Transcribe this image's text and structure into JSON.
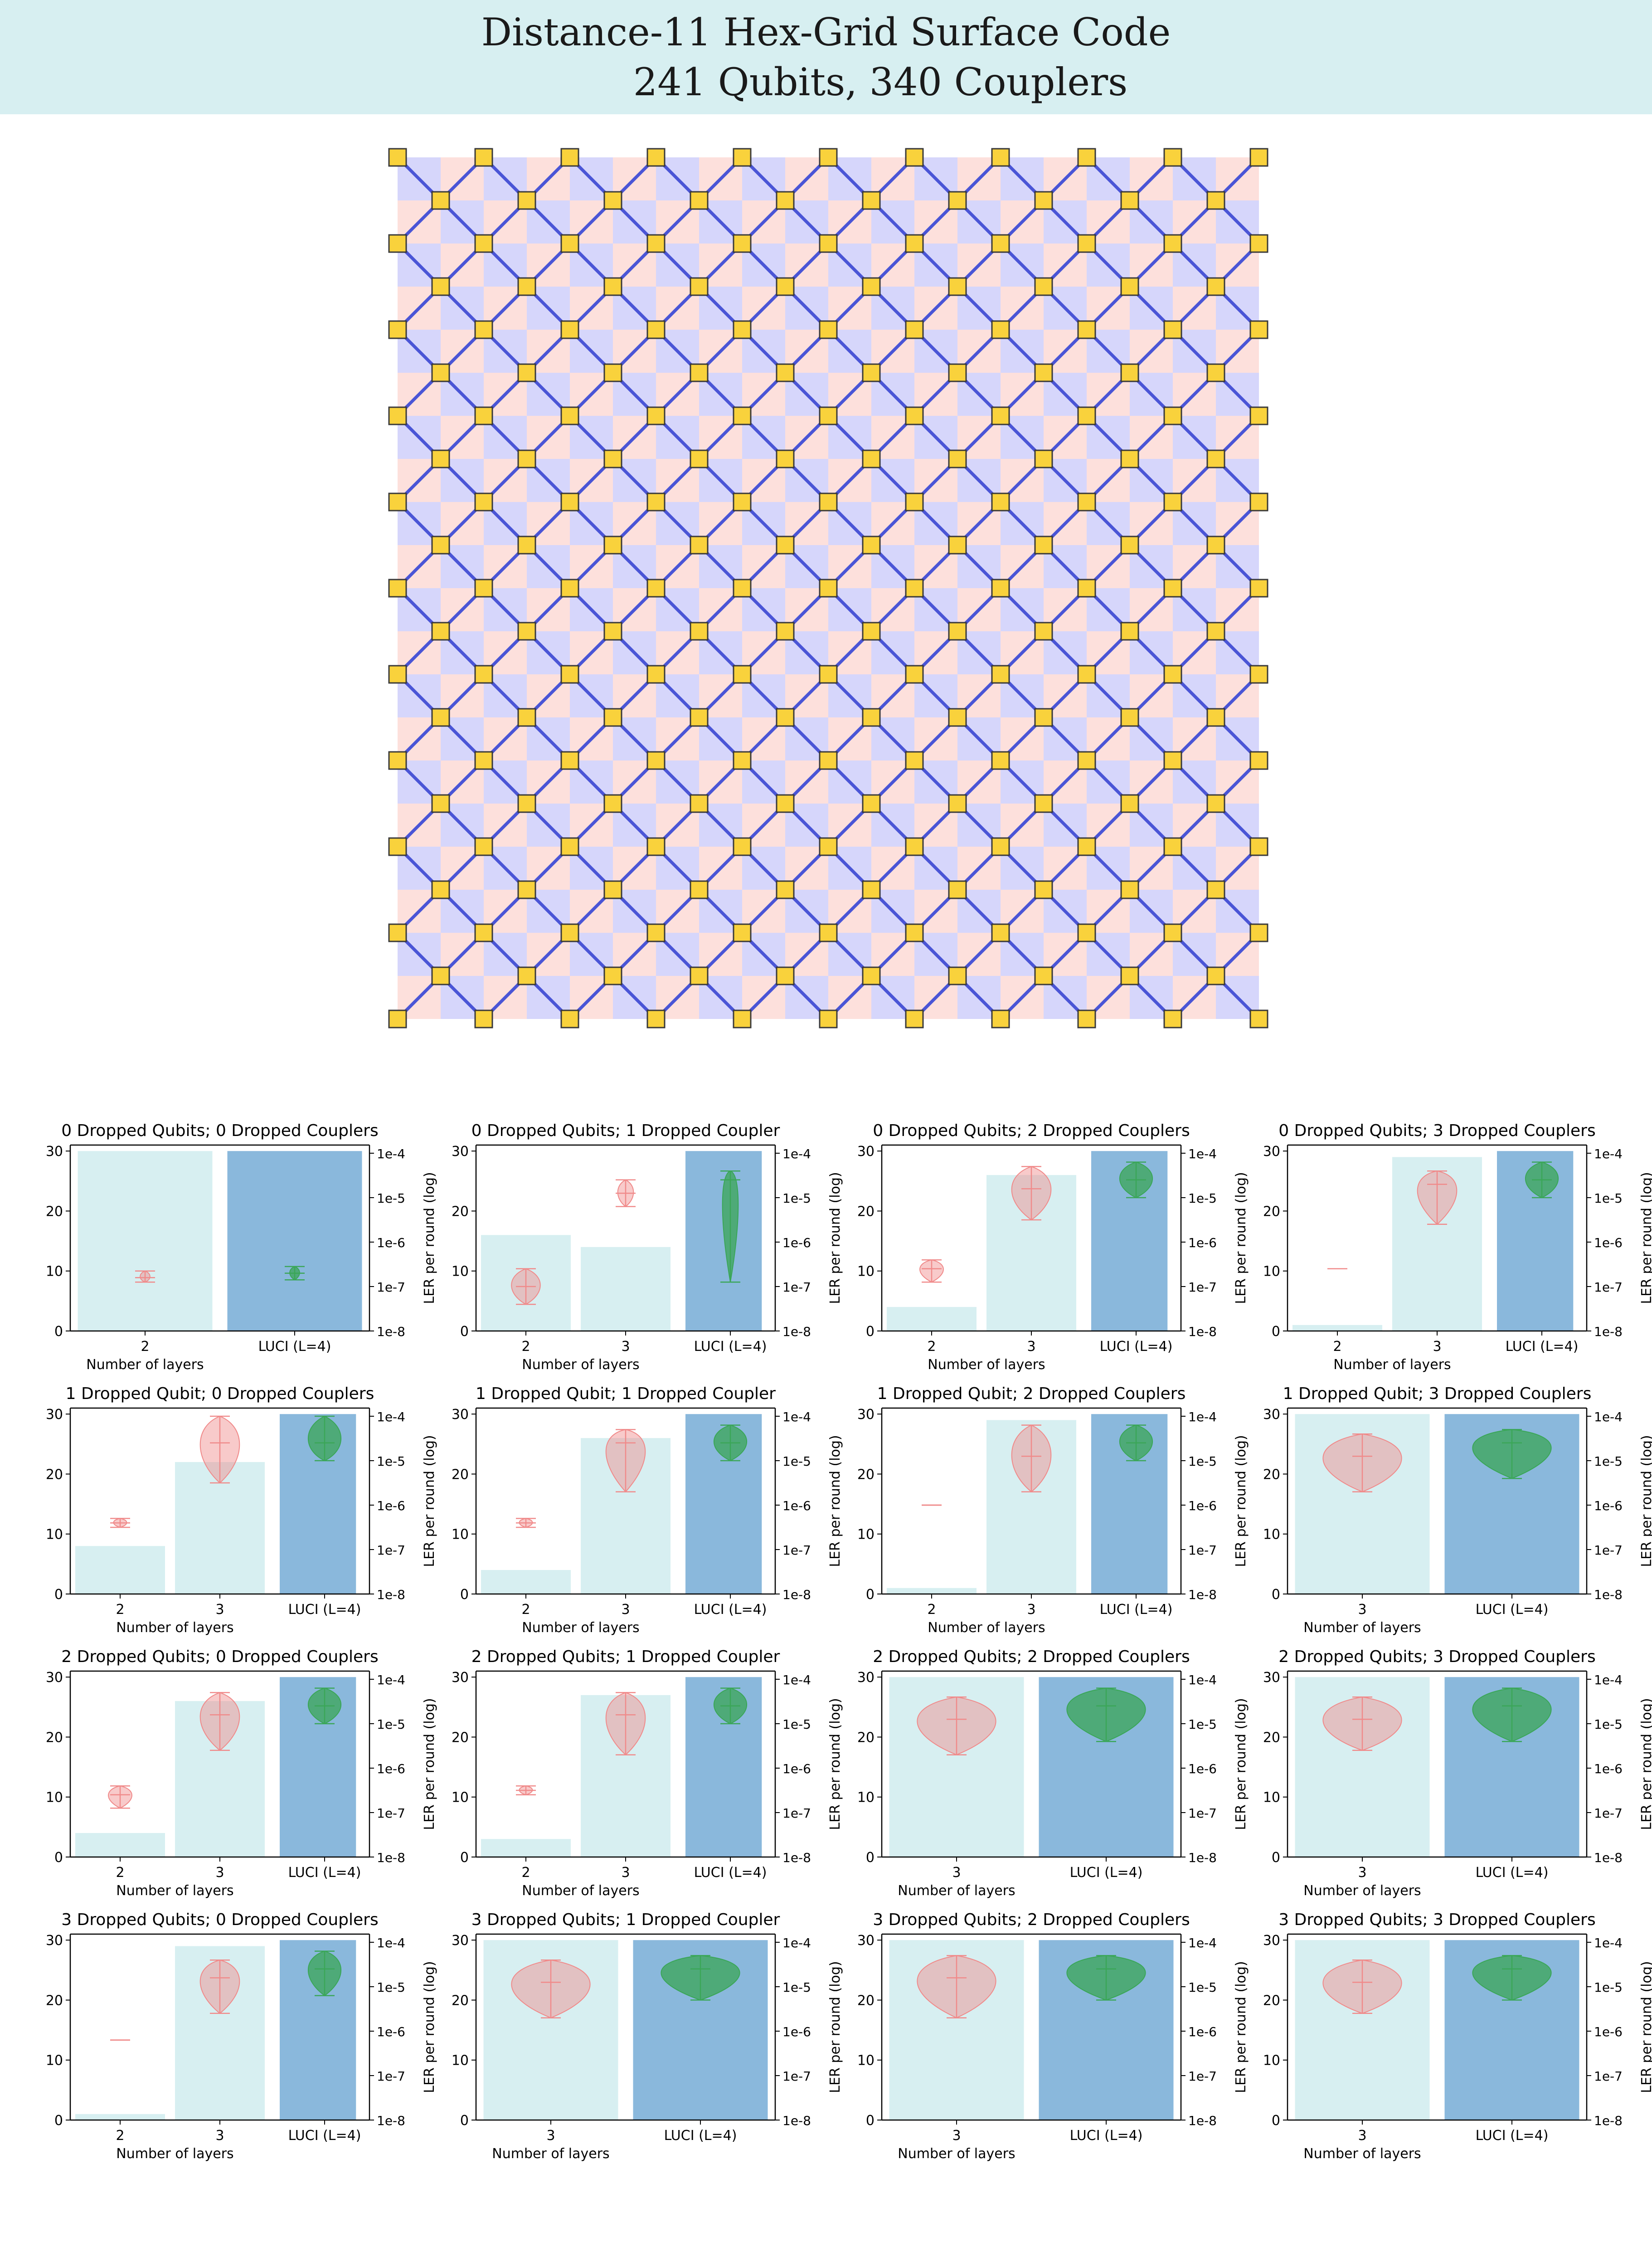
{
  "title": {
    "line1": "Distance-11 Hex-Grid Surface Code",
    "line2": "241 Qubits, 340 Couplers"
  },
  "colors": {
    "banner": "#d7eff1",
    "x_plaquette": "#d6d6fb",
    "z_plaquette": "#fde0dc",
    "coupler": "#4a55d6",
    "qubit": "#f9d23c",
    "qubit_edge": "#3a3a3a",
    "layer_bar": "#d7eff1",
    "luci_bar": "#8ab8dc",
    "layer_violin": "#f08a8a",
    "luci_violin": "#3aa657"
  },
  "lattice": {
    "distance": 11,
    "qubits": 241,
    "couplers": 340
  },
  "chart_data": [
    {
      "title": "0 Dropped Qubits; 0 Dropped Couplers",
      "type": "bar+violin",
      "categories": [
        "2",
        "LUCI (L=4)"
      ],
      "bar_values": [
        30,
        30
      ],
      "violin_ler_log10": [
        -6.8,
        -6.7
      ],
      "violin_spread": [
        0.05,
        0.05
      ],
      "violin_range": [
        [
          -6.9,
          -6.65
        ],
        [
          -6.85,
          -6.55
        ]
      ],
      "xlabel": "Number of layers",
      "ylabel_right": "LER per round (log)",
      "yticks_left": [
        "0",
        "10",
        "20",
        "30"
      ],
      "yticks_right": [
        "1e-8",
        "1e-7",
        "1e-6",
        "1e-5",
        "1e-4"
      ],
      "ylim": [
        0,
        31
      ]
    },
    {
      "title": "0 Dropped Qubits; 1 Dropped Coupler",
      "type": "bar+violin",
      "categories": [
        "2",
        "3",
        "LUCI (L=4)"
      ],
      "bar_values": [
        16,
        14,
        30
      ],
      "violin_ler_log10": [
        -7.0,
        -4.9,
        -4.6
      ],
      "violin_spread": [
        0.22,
        0.12,
        0.12
      ],
      "violin_range": [
        [
          -7.4,
          -6.6
        ],
        [
          -5.2,
          -4.6
        ],
        [
          -6.9,
          -4.4
        ]
      ],
      "xlabel": "Number of layers",
      "ylabel_right": "LER per round (log)",
      "yticks_left": [
        "0",
        "10",
        "20",
        "30"
      ],
      "yticks_right": [
        "1e-8",
        "1e-7",
        "1e-6",
        "1e-5",
        "1e-4"
      ],
      "ylim": [
        0,
        31
      ]
    },
    {
      "title": "0 Dropped Qubits; 2 Dropped Couplers",
      "type": "bar+violin",
      "categories": [
        "2",
        "3",
        "LUCI (L=4)"
      ],
      "bar_values": [
        4,
        26,
        30
      ],
      "violin_ler_log10": [
        -6.6,
        -4.8,
        -4.6
      ],
      "violin_spread": [
        0.18,
        0.3,
        0.25
      ],
      "violin_range": [
        [
          -6.9,
          -6.4
        ],
        [
          -5.5,
          -4.3
        ],
        [
          -5.0,
          -4.2
        ]
      ],
      "xlabel": "Number of layers",
      "ylabel_right": "LER per round (log)",
      "yticks_left": [
        "0",
        "10",
        "20",
        "30"
      ],
      "yticks_right": [
        "1e-8",
        "1e-7",
        "1e-6",
        "1e-5",
        "1e-4"
      ],
      "ylim": [
        0,
        31
      ]
    },
    {
      "title": "0 Dropped Qubits; 3 Dropped Couplers",
      "type": "bar+violin",
      "categories": [
        "2",
        "3",
        "LUCI (L=4)"
      ],
      "bar_values": [
        1,
        29,
        30
      ],
      "violin_ler_log10": [
        -6.6,
        -4.7,
        -4.6
      ],
      "violin_spread": [
        0.02,
        0.3,
        0.25
      ],
      "violin_range": [
        [
          -6.6,
          -6.6
        ],
        [
          -5.6,
          -4.4
        ],
        [
          -5.0,
          -4.2
        ]
      ],
      "xlabel": "Number of layers",
      "ylabel_right": "LER per round (log)",
      "yticks_left": [
        "0",
        "10",
        "20",
        "30"
      ],
      "yticks_right": [
        "1e-8",
        "1e-7",
        "1e-6",
        "1e-5",
        "1e-4"
      ],
      "ylim": [
        0,
        31
      ]
    },
    {
      "title": "1 Dropped Qubit; 0 Dropped Couplers",
      "type": "bar+violin",
      "categories": [
        "2",
        "3",
        "LUCI (L=4)"
      ],
      "bar_values": [
        8,
        22,
        30
      ],
      "violin_ler_log10": [
        -6.4,
        -4.6,
        -4.6
      ],
      "violin_spread": [
        0.1,
        0.3,
        0.25
      ],
      "violin_range": [
        [
          -6.5,
          -6.3
        ],
        [
          -5.5,
          -4.0
        ],
        [
          -5.0,
          -4.0
        ]
      ],
      "xlabel": "Number of layers",
      "ylabel_right": "LER per round (log)",
      "yticks_left": [
        "0",
        "10",
        "20",
        "30"
      ],
      "yticks_right": [
        "1e-8",
        "1e-7",
        "1e-6",
        "1e-5",
        "1e-4"
      ],
      "ylim": [
        0,
        31
      ]
    },
    {
      "title": "1 Dropped Qubit; 1 Dropped Coupler",
      "type": "bar+violin",
      "categories": [
        "2",
        "3",
        "LUCI (L=4)"
      ],
      "bar_values": [
        4,
        26,
        30
      ],
      "violin_ler_log10": [
        -6.4,
        -4.6,
        -4.6
      ],
      "violin_spread": [
        0.1,
        0.3,
        0.25
      ],
      "violin_range": [
        [
          -6.5,
          -6.3
        ],
        [
          -5.7,
          -4.3
        ],
        [
          -5.0,
          -4.2
        ]
      ],
      "xlabel": "Number of layers",
      "ylabel_right": "LER per round (log)",
      "yticks_left": [
        "0",
        "10",
        "20",
        "30"
      ],
      "yticks_right": [
        "1e-8",
        "1e-7",
        "1e-6",
        "1e-5",
        "1e-4"
      ],
      "ylim": [
        0,
        31
      ]
    },
    {
      "title": "1 Dropped Qubit; 2 Dropped Couplers",
      "type": "bar+violin",
      "categories": [
        "2",
        "3",
        "LUCI (L=4)"
      ],
      "bar_values": [
        1,
        29,
        30
      ],
      "violin_ler_log10": [
        -6.0,
        -4.9,
        -4.6
      ],
      "violin_spread": [
        0.02,
        0.3,
        0.25
      ],
      "violin_range": [
        [
          -6.0,
          -6.0
        ],
        [
          -5.7,
          -4.2
        ],
        [
          -5.0,
          -4.2
        ]
      ],
      "xlabel": "Number of layers",
      "ylabel_right": "LER per round (log)",
      "yticks_left": [
        "0",
        "10",
        "20",
        "30"
      ],
      "yticks_right": [
        "1e-8",
        "1e-7",
        "1e-6",
        "1e-5",
        "1e-4"
      ],
      "ylim": [
        0,
        31
      ]
    },
    {
      "title": "1 Dropped Qubit; 3 Dropped Couplers",
      "type": "bar+violin",
      "categories": [
        "3",
        "LUCI (L=4)"
      ],
      "bar_values": [
        30,
        30
      ],
      "violin_ler_log10": [
        -4.9,
        -4.6
      ],
      "violin_spread": [
        0.4,
        0.4
      ],
      "violin_range": [
        [
          -5.7,
          -4.4
        ],
        [
          -5.4,
          -4.3
        ]
      ],
      "xlabel": "Number of layers",
      "ylabel_right": "LER per round (log)",
      "yticks_left": [
        "0",
        "10",
        "20",
        "30"
      ],
      "yticks_right": [
        "1e-8",
        "1e-7",
        "1e-6",
        "1e-5",
        "1e-4"
      ],
      "ylim": [
        0,
        31
      ]
    },
    {
      "title": "2 Dropped Qubits; 0 Dropped Couplers",
      "type": "bar+violin",
      "categories": [
        "2",
        "3",
        "LUCI (L=4)"
      ],
      "bar_values": [
        4,
        26,
        30
      ],
      "violin_ler_log10": [
        -6.6,
        -4.8,
        -4.6
      ],
      "violin_spread": [
        0.18,
        0.3,
        0.25
      ],
      "violin_range": [
        [
          -6.9,
          -6.4
        ],
        [
          -5.6,
          -4.3
        ],
        [
          -5.0,
          -4.2
        ]
      ],
      "xlabel": "Number of layers",
      "ylabel_right": "LER per round (log)",
      "yticks_left": [
        "0",
        "10",
        "20",
        "30"
      ],
      "yticks_right": [
        "1e-8",
        "1e-7",
        "1e-6",
        "1e-5",
        "1e-4"
      ],
      "ylim": [
        0,
        31
      ]
    },
    {
      "title": "2 Dropped Qubits; 1 Dropped Coupler",
      "type": "bar+violin",
      "categories": [
        "2",
        "3",
        "LUCI (L=4)"
      ],
      "bar_values": [
        3,
        27,
        30
      ],
      "violin_ler_log10": [
        -6.5,
        -4.8,
        -4.6
      ],
      "violin_spread": [
        0.1,
        0.3,
        0.25
      ],
      "violin_range": [
        [
          -6.6,
          -6.4
        ],
        [
          -5.7,
          -4.3
        ],
        [
          -5.0,
          -4.2
        ]
      ],
      "xlabel": "Number of layers",
      "ylabel_right": "LER per round (log)",
      "yticks_left": [
        "0",
        "10",
        "20",
        "30"
      ],
      "yticks_right": [
        "1e-8",
        "1e-7",
        "1e-6",
        "1e-5",
        "1e-4"
      ],
      "ylim": [
        0,
        31
      ]
    },
    {
      "title": "2 Dropped Qubits; 2 Dropped Couplers",
      "type": "bar+violin",
      "categories": [
        "3",
        "LUCI (L=4)"
      ],
      "bar_values": [
        30,
        30
      ],
      "violin_ler_log10": [
        -4.9,
        -4.6
      ],
      "violin_spread": [
        0.4,
        0.4
      ],
      "violin_range": [
        [
          -5.7,
          -4.4
        ],
        [
          -5.4,
          -4.2
        ]
      ],
      "xlabel": "Number of layers",
      "ylabel_right": "LER per round (log)",
      "yticks_left": [
        "0",
        "10",
        "20",
        "30"
      ],
      "yticks_right": [
        "1e-8",
        "1e-7",
        "1e-6",
        "1e-5",
        "1e-4"
      ],
      "ylim": [
        0,
        31
      ]
    },
    {
      "title": "2 Dropped Qubits; 3 Dropped Couplers",
      "type": "bar+violin",
      "categories": [
        "3",
        "LUCI (L=4)"
      ],
      "bar_values": [
        30,
        30
      ],
      "violin_ler_log10": [
        -4.9,
        -4.6
      ],
      "violin_spread": [
        0.4,
        0.4
      ],
      "violin_range": [
        [
          -5.6,
          -4.4
        ],
        [
          -5.4,
          -4.2
        ]
      ],
      "xlabel": "Number of layers",
      "ylabel_right": "LER per round (log)",
      "yticks_left": [
        "0",
        "10",
        "20",
        "30"
      ],
      "yticks_right": [
        "1e-8",
        "1e-7",
        "1e-6",
        "1e-5",
        "1e-4"
      ],
      "ylim": [
        0,
        31
      ]
    },
    {
      "title": "3 Dropped Qubits; 0 Dropped Couplers",
      "type": "bar+violin",
      "categories": [
        "2",
        "3",
        "LUCI (L=4)"
      ],
      "bar_values": [
        1,
        29,
        30
      ],
      "violin_ler_log10": [
        -6.2,
        -4.8,
        -4.6
      ],
      "violin_spread": [
        0.02,
        0.3,
        0.25
      ],
      "violin_range": [
        [
          -6.2,
          -6.2
        ],
        [
          -5.6,
          -4.4
        ],
        [
          -5.2,
          -4.2
        ]
      ],
      "xlabel": "Number of layers",
      "ylabel_right": "LER per round (log)",
      "yticks_left": [
        "0",
        "10",
        "20",
        "30"
      ],
      "yticks_right": [
        "1e-8",
        "1e-7",
        "1e-6",
        "1e-5",
        "1e-4"
      ],
      "ylim": [
        0,
        31
      ]
    },
    {
      "title": "3 Dropped Qubits; 1 Dropped Coupler",
      "type": "bar+violin",
      "categories": [
        "3",
        "LUCI (L=4)"
      ],
      "bar_values": [
        30,
        30
      ],
      "violin_ler_log10": [
        -4.9,
        -4.6
      ],
      "violin_spread": [
        0.4,
        0.4
      ],
      "violin_range": [
        [
          -5.7,
          -4.4
        ],
        [
          -5.3,
          -4.3
        ]
      ],
      "xlabel": "Number of layers",
      "ylabel_right": "LER per round (log)",
      "yticks_left": [
        "0",
        "10",
        "20",
        "30"
      ],
      "yticks_right": [
        "1e-8",
        "1e-7",
        "1e-6",
        "1e-5",
        "1e-4"
      ],
      "ylim": [
        0,
        31
      ]
    },
    {
      "title": "3 Dropped Qubits; 2 Dropped Couplers",
      "type": "bar+violin",
      "categories": [
        "3",
        "LUCI (L=4)"
      ],
      "bar_values": [
        30,
        30
      ],
      "violin_ler_log10": [
        -4.8,
        -4.6
      ],
      "violin_spread": [
        0.4,
        0.4
      ],
      "violin_range": [
        [
          -5.7,
          -4.3
        ],
        [
          -5.3,
          -4.3
        ]
      ],
      "xlabel": "Number of layers",
      "ylabel_right": "LER per round (log)",
      "yticks_left": [
        "0",
        "10",
        "20",
        "30"
      ],
      "yticks_right": [
        "1e-8",
        "1e-7",
        "1e-6",
        "1e-5",
        "1e-4"
      ],
      "ylim": [
        0,
        31
      ]
    },
    {
      "title": "3 Dropped Qubits; 3 Dropped Couplers",
      "type": "bar+violin",
      "categories": [
        "3",
        "LUCI (L=4)"
      ],
      "bar_values": [
        30,
        30
      ],
      "violin_ler_log10": [
        -4.9,
        -4.6
      ],
      "violin_spread": [
        0.4,
        0.4
      ],
      "violin_range": [
        [
          -5.6,
          -4.4
        ],
        [
          -5.3,
          -4.3
        ]
      ],
      "xlabel": "Number of layers",
      "ylabel_right": "LER per round (log)",
      "yticks_left": [
        "0",
        "10",
        "20",
        "30"
      ],
      "yticks_right": [
        "1e-8",
        "1e-7",
        "1e-6",
        "1e-5",
        "1e-4"
      ],
      "ylim": [
        0,
        31
      ]
    }
  ]
}
